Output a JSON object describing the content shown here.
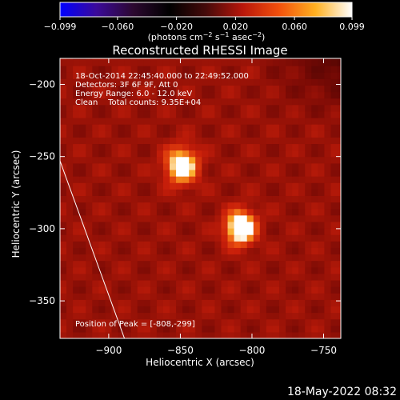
{
  "chart_data": {
    "type": "heatmap",
    "title": "Reconstructed RHESSI Image",
    "xlabel": "Heliocentric X (arcsec)",
    "ylabel": "Heliocentric Y (arcsec)",
    "xlim": [
      -934,
      -738
    ],
    "ylim": [
      -376,
      -182
    ],
    "x_ticks": [
      -900,
      -850,
      -800,
      -750
    ],
    "x_tick_labels": [
      "−900",
      "−850",
      "−800",
      "−750"
    ],
    "y_ticks": [
      -200,
      -250,
      -300,
      -350
    ],
    "y_tick_labels": [
      "−200",
      "−250",
      "−300",
      "−350"
    ],
    "colorbar": {
      "range": [
        -0.099,
        0.099
      ],
      "ticks": [
        -0.099,
        -0.06,
        -0.02,
        0.02,
        0.06,
        0.099
      ],
      "tick_labels": [
        "−0.099",
        "−0.060",
        "−0.020",
        "0.020",
        "0.060",
        "0.099"
      ],
      "unit_label": "(photons cm",
      "unit_exp1": "−2",
      "unit_mid": " s",
      "unit_exp2": "−1",
      "unit_mid2": " asec",
      "unit_exp3": "−2",
      "unit_end": ")",
      "colormap": [
        "#0000ff",
        "#3b0a9a",
        "#2c0830",
        "#000000",
        "#450a0a",
        "#b8160a",
        "#f2500c",
        "#ffb020",
        "#ffffff"
      ]
    },
    "sources": [
      {
        "x": -849,
        "y": -256,
        "peak": 0.085
      },
      {
        "x": -808,
        "y": -299,
        "peak": 0.099
      }
    ],
    "background_level": 0.035,
    "limb_line": [
      [
        -934,
        -253
      ],
      [
        -889,
        -376
      ]
    ],
    "annotations": {
      "line1": "18-Oct-2014 22:45:40.000 to 22:49:52.000",
      "line2": "Detectors: 3F 6F 9F, Att 0",
      "line3": "Energy Range: 6.0 - 12.0 keV",
      "line4": "Clean    Total counts: 9.35E+04",
      "peak": "Position of Peak = [-808,-299]"
    }
  },
  "footer_timestamp": "18-May-2022 08:32",
  "colors": {
    "background": "#000000",
    "text": "#ffffff",
    "limb": "#ffffff"
  }
}
